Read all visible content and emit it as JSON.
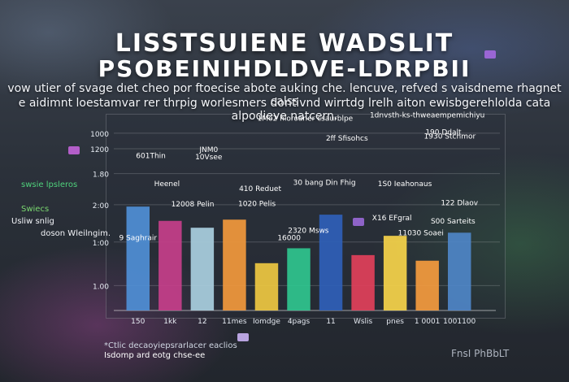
{
  "header": {
    "title_line1": "LISSTSUIENE WADSLIT",
    "title_line2": "PSOBEINIHDLDVE-LDRPBII",
    "subtitle_line1": "vow utier of svage dıet cheo por ftoecise abote auking che. lencuve, refved s vaisdneme rhagnet calss",
    "subtitle_line2": "e aidimnt loestamvar rer thrpig worlesmers dontivnd wirrtdg lrelh aiton ewisbgerehlolda cata alpodieve natcern."
  },
  "side_labels": [
    "swsie lpsleros",
    "Swiecs",
    "Usliw snlig",
    "doson Wleilngim."
  ],
  "bottom_notes": [
    "*Ctlic decaoyiepsrarlacer eaclios",
    "Isdomp ard eotg chse-ee"
  ],
  "corner_text": "FnsI PhBbLT",
  "colors": {
    "blue": "#4f8fd6",
    "magenta": "#c53f8a",
    "light_blue": "#a9cfe0",
    "orange": "#f2993c",
    "yellow": "#eec841",
    "teal": "#2fc68e",
    "navy": "#2f5fb8",
    "red": "#e1405a",
    "gold": "#f6d44a",
    "amber": "#f49b3e",
    "steel": "#4e86c7"
  },
  "chart_data": {
    "type": "bar",
    "ylim": [
      0,
      2.9
    ],
    "y_ticks": [
      "1.00",
      "1:00",
      "2:00",
      "1.80",
      "1200",
      "1000"
    ],
    "y_tick_values": [
      0.4,
      1.1,
      1.7,
      2.2,
      2.6,
      2.85
    ],
    "categories": [
      "150",
      "1kk",
      "12",
      "11mes",
      "Iomdge",
      "4pags",
      "11",
      "Wslis",
      "pnes",
      "1 0001",
      "1001100"
    ],
    "values": [
      1.67,
      1.44,
      1.33,
      1.46,
      0.76,
      1.0,
      1.54,
      0.89,
      1.2,
      0.8,
      1.25
    ],
    "bar_colors": [
      "blue",
      "magenta",
      "light_blue",
      "orange",
      "yellow",
      "teal",
      "navy",
      "red",
      "gold",
      "amber",
      "steel"
    ],
    "annotations": [
      {
        "text": "12008 Pelin",
        "x": 2.2,
        "y": 1.67
      },
      {
        "text": "Heenel",
        "x": 1.4,
        "y": 2.0
      },
      {
        "text": "601Thin",
        "x": 0.9,
        "y": 2.45
      },
      {
        "text": "JNM0",
        "x": 2.7,
        "y": 2.55
      },
      {
        "text": "10Vsee",
        "x": 2.7,
        "y": 2.43
      },
      {
        "text": "410 Reduet",
        "x": 4.3,
        "y": 1.92
      },
      {
        "text": "1020 Pelis",
        "x": 4.2,
        "y": 1.68
      },
      {
        "text": "30 bang Din Fhig",
        "x": 6.3,
        "y": 2.02
      },
      {
        "text": "1S0 Ieahonaus",
        "x": 8.8,
        "y": 2.0
      },
      {
        "text": "2ff Sfisohcs",
        "x": 7.0,
        "y": 2.73
      },
      {
        "text": "190 Ddalt",
        "x": 10.0,
        "y": 2.83
      },
      {
        "text": "1930 Stchmor",
        "x": 10.2,
        "y": 2.76
      },
      {
        "text": "X16 EFgral",
        "x": 8.4,
        "y": 1.45
      },
      {
        "text": "122 Dlaov",
        "x": 10.5,
        "y": 1.69
      },
      {
        "text": "2320 Msws",
        "x": 5.8,
        "y": 1.25
      },
      {
        "text": "16000",
        "x": 5.2,
        "y": 1.13
      },
      {
        "text": "9 Saghrair",
        "x": 0.5,
        "y": 1.13
      },
      {
        "text": "S00 Sarteits",
        "x": 10.3,
        "y": 1.4
      },
      {
        "text": "11030 Soaei",
        "x": 9.3,
        "y": 1.21
      },
      {
        "text": "1Mo2 hloroaner csaurblpe",
        "x": 5.7,
        "y": 3.05
      },
      {
        "text": "1dnvsth-ks-thweaempemichiyu",
        "x": 9.5,
        "y": 3.1
      }
    ]
  }
}
